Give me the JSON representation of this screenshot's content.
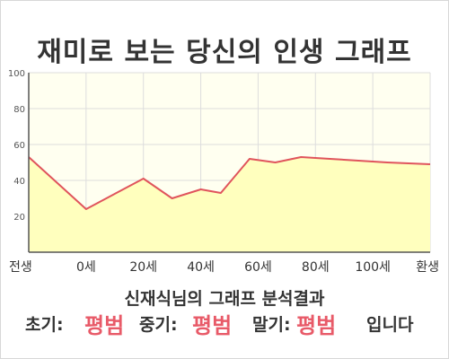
{
  "page": {
    "title": "재미로 보는 당신의 인생 그래프",
    "subtitle": "신재식님의 그래프 분석결과",
    "result": {
      "early_label": "초기:",
      "early_value": "평범",
      "mid_label": "중기:",
      "mid_value": "평범",
      "late_label": "말기:",
      "late_value": "평범",
      "suffix": "입니다"
    }
  },
  "colors": {
    "line": "#e0545c",
    "area": "#ffffbe",
    "plot_bg": "#fffff0",
    "grid": "#dddddd",
    "highlight": "#e85a68"
  },
  "chart_data": {
    "type": "area",
    "x_tick_labels": [
      "전생",
      "0세",
      "20세",
      "40세",
      "60세",
      "80세",
      "100세",
      "환생"
    ],
    "x_tick_values": [
      -20,
      0,
      20,
      40,
      60,
      80,
      100,
      120
    ],
    "xlim": [
      -20,
      120
    ],
    "ylim": [
      0,
      100
    ],
    "y_ticks": [
      20,
      40,
      60,
      80,
      100
    ],
    "grid": true,
    "series": [
      {
        "x": [
          -20,
          0,
          20,
          30,
          40,
          47,
          57,
          66,
          75,
          85,
          95,
          105,
          120
        ],
        "values": [
          53,
          24,
          41,
          30,
          35,
          33,
          52,
          50,
          53,
          52,
          51,
          50,
          49
        ]
      }
    ]
  }
}
